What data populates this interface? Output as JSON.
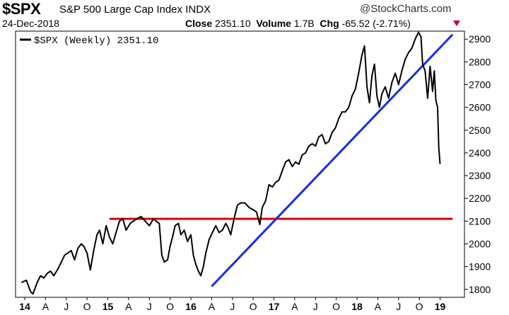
{
  "header": {
    "symbol": "$SPX",
    "name": "S&P 500 Large Cap Index",
    "exchange": "INDX",
    "date": "24-Dec-2018",
    "close_label": "Close",
    "close_value": "2351.10",
    "volume_label": "Volume",
    "volume_value": "1.7B",
    "chg_label": "Chg",
    "chg_value": "-65.52 (-2.71%)",
    "brand": "@StockCharts.com",
    "brand_icon": "copyright-icon",
    "down_arrow_color": "#c0003a"
  },
  "chart_data": {
    "type": "line",
    "legend": "$SPX (Weekly) 2351.10",
    "ylim": [
      1765,
      2935
    ],
    "yticks": [
      1800,
      1900,
      2000,
      2100,
      2200,
      2300,
      2400,
      2500,
      2600,
      2700,
      2800,
      2900
    ],
    "xticks": [
      {
        "label": "14",
        "t": 2014.0,
        "year": true
      },
      {
        "label": "A",
        "t": 2014.25
      },
      {
        "label": "J",
        "t": 2014.5
      },
      {
        "label": "O",
        "t": 2014.75
      },
      {
        "label": "15",
        "t": 2015.0,
        "year": true
      },
      {
        "label": "A",
        "t": 2015.25
      },
      {
        "label": "J",
        "t": 2015.5
      },
      {
        "label": "O",
        "t": 2015.75
      },
      {
        "label": "16",
        "t": 2016.0,
        "year": true
      },
      {
        "label": "A",
        "t": 2016.25
      },
      {
        "label": "J",
        "t": 2016.5
      },
      {
        "label": "O",
        "t": 2016.75
      },
      {
        "label": "17",
        "t": 2017.0,
        "year": true
      },
      {
        "label": "A",
        "t": 2017.25
      },
      {
        "label": "J",
        "t": 2017.5
      },
      {
        "label": "O",
        "t": 2017.75
      },
      {
        "label": "18",
        "t": 2018.0,
        "year": true
      },
      {
        "label": "A",
        "t": 2018.25
      },
      {
        "label": "J",
        "t": 2018.5
      },
      {
        "label": "O",
        "t": 2018.75
      },
      {
        "label": "19",
        "t": 2019.0,
        "year": true
      }
    ],
    "series": [
      {
        "name": "$SPX (Weekly)",
        "color": "#000000",
        "points": [
          [
            2013.96,
            1830
          ],
          [
            2014.02,
            1840
          ],
          [
            2014.07,
            1790
          ],
          [
            2014.1,
            1780
          ],
          [
            2014.15,
            1830
          ],
          [
            2014.19,
            1860
          ],
          [
            2014.23,
            1850
          ],
          [
            2014.27,
            1870
          ],
          [
            2014.31,
            1880
          ],
          [
            2014.35,
            1860
          ],
          [
            2014.4,
            1890
          ],
          [
            2014.44,
            1920
          ],
          [
            2014.48,
            1950
          ],
          [
            2014.52,
            1960
          ],
          [
            2014.56,
            1970
          ],
          [
            2014.6,
            1930
          ],
          [
            2014.64,
            1980
          ],
          [
            2014.68,
            2000
          ],
          [
            2014.71,
            1990
          ],
          [
            2014.75,
            1960
          ],
          [
            2014.79,
            1885
          ],
          [
            2014.83,
            1970
          ],
          [
            2014.87,
            2040
          ],
          [
            2014.9,
            2060
          ],
          [
            2014.94,
            2000
          ],
          [
            2014.98,
            2080
          ],
          [
            2015.02,
            2030
          ],
          [
            2015.06,
            2000
          ],
          [
            2015.1,
            2050
          ],
          [
            2015.14,
            2100
          ],
          [
            2015.18,
            2110
          ],
          [
            2015.22,
            2060
          ],
          [
            2015.27,
            2090
          ],
          [
            2015.31,
            2100
          ],
          [
            2015.35,
            2110
          ],
          [
            2015.4,
            2120
          ],
          [
            2015.45,
            2100
          ],
          [
            2015.5,
            2080
          ],
          [
            2015.55,
            2110
          ],
          [
            2015.58,
            2100
          ],
          [
            2015.62,
            2090
          ],
          [
            2015.65,
            1950
          ],
          [
            2015.68,
            1920
          ],
          [
            2015.72,
            1930
          ],
          [
            2015.75,
            1990
          ],
          [
            2015.78,
            2030
          ],
          [
            2015.81,
            2080
          ],
          [
            2015.85,
            2090
          ],
          [
            2015.88,
            2040
          ],
          [
            2015.92,
            2060
          ],
          [
            2015.96,
            2010
          ],
          [
            2016.0,
            2040
          ],
          [
            2016.03,
            1950
          ],
          [
            2016.06,
            1910
          ],
          [
            2016.09,
            1880
          ],
          [
            2016.12,
            1860
          ],
          [
            2016.15,
            1900
          ],
          [
            2016.18,
            1960
          ],
          [
            2016.22,
            2020
          ],
          [
            2016.26,
            2050
          ],
          [
            2016.3,
            2080
          ],
          [
            2016.34,
            2050
          ],
          [
            2016.38,
            2060
          ],
          [
            2016.42,
            2090
          ],
          [
            2016.45,
            2070
          ],
          [
            2016.48,
            2040
          ],
          [
            2016.52,
            2110
          ],
          [
            2016.56,
            2170
          ],
          [
            2016.6,
            2180
          ],
          [
            2016.65,
            2180
          ],
          [
            2016.7,
            2160
          ],
          [
            2016.75,
            2150
          ],
          [
            2016.79,
            2140
          ],
          [
            2016.83,
            2085
          ],
          [
            2016.86,
            2160
          ],
          [
            2016.9,
            2190
          ],
          [
            2016.94,
            2260
          ],
          [
            2016.98,
            2250
          ],
          [
            2017.02,
            2270
          ],
          [
            2017.06,
            2280
          ],
          [
            2017.1,
            2320
          ],
          [
            2017.14,
            2360
          ],
          [
            2017.18,
            2370
          ],
          [
            2017.22,
            2340
          ],
          [
            2017.26,
            2360
          ],
          [
            2017.3,
            2350
          ],
          [
            2017.34,
            2390
          ],
          [
            2017.38,
            2400
          ],
          [
            2017.42,
            2430
          ],
          [
            2017.46,
            2440
          ],
          [
            2017.5,
            2430
          ],
          [
            2017.54,
            2470
          ],
          [
            2017.58,
            2480
          ],
          [
            2017.62,
            2440
          ],
          [
            2017.66,
            2450
          ],
          [
            2017.7,
            2490
          ],
          [
            2017.74,
            2510
          ],
          [
            2017.78,
            2550
          ],
          [
            2017.82,
            2580
          ],
          [
            2017.86,
            2580
          ],
          [
            2017.9,
            2600
          ],
          [
            2017.94,
            2650
          ],
          [
            2017.98,
            2680
          ],
          [
            2018.02,
            2750
          ],
          [
            2018.06,
            2830
          ],
          [
            2018.09,
            2870
          ],
          [
            2018.12,
            2690
          ],
          [
            2018.15,
            2620
          ],
          [
            2018.18,
            2740
          ],
          [
            2018.21,
            2790
          ],
          [
            2018.24,
            2650
          ],
          [
            2018.27,
            2600
          ],
          [
            2018.3,
            2660
          ],
          [
            2018.34,
            2690
          ],
          [
            2018.38,
            2640
          ],
          [
            2018.42,
            2710
          ],
          [
            2018.46,
            2750
          ],
          [
            2018.5,
            2700
          ],
          [
            2018.54,
            2760
          ],
          [
            2018.58,
            2810
          ],
          [
            2018.62,
            2840
          ],
          [
            2018.66,
            2860
          ],
          [
            2018.7,
            2900
          ],
          [
            2018.74,
            2930
          ],
          [
            2018.77,
            2910
          ],
          [
            2018.79,
            2790
          ],
          [
            2018.82,
            2760
          ],
          [
            2018.85,
            2640
          ],
          [
            2018.88,
            2780
          ],
          [
            2018.91,
            2670
          ],
          [
            2018.93,
            2760
          ],
          [
            2018.95,
            2630
          ],
          [
            2018.97,
            2600
          ],
          [
            2018.985,
            2420
          ],
          [
            2019.0,
            2351
          ]
        ]
      }
    ],
    "overlays": [
      {
        "kind": "horizontal-line",
        "y": 2110,
        "x_range": [
          2015.02,
          2019.15
        ],
        "color": "#e0000a"
      },
      {
        "kind": "trend-line",
        "from": [
          2016.25,
          1813
        ],
        "to": [
          2019.15,
          2920
        ],
        "color": "#1a2be0"
      }
    ]
  }
}
